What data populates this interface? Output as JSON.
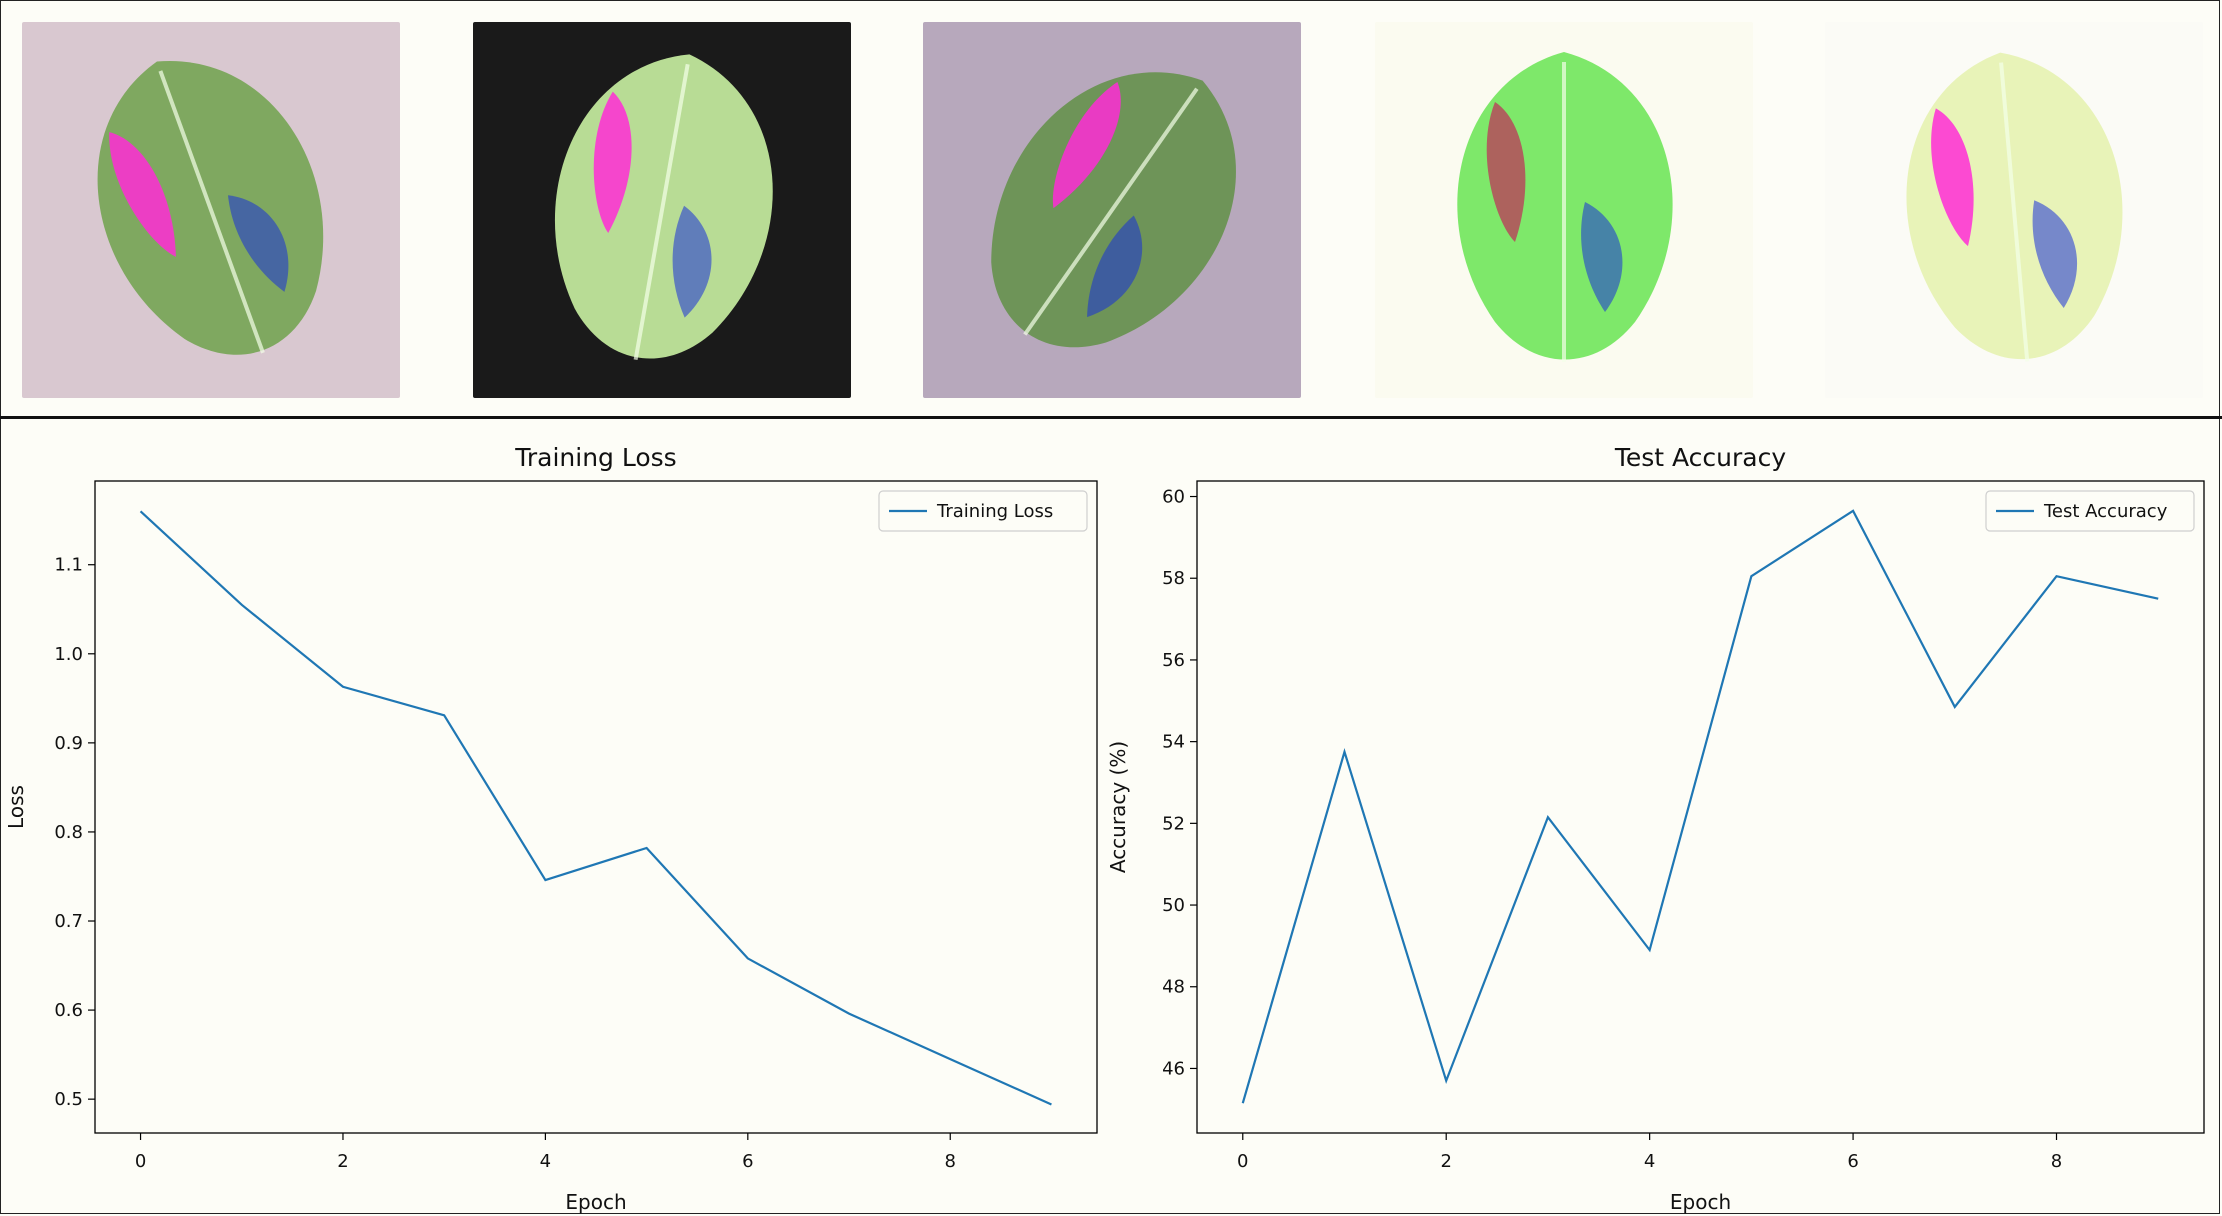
{
  "image_strip": {
    "items": [
      {
        "name": "leaf-sample-1",
        "bg": "#d9c8d0",
        "leaf": "#7fa860",
        "accent": "#ff2bd6"
      },
      {
        "name": "leaf-sample-2",
        "bg": "#1a1a1a",
        "leaf": "#b8dc95",
        "accent": "#ff2bd6"
      },
      {
        "name": "leaf-sample-3",
        "bg": "#b7a8bc",
        "leaf": "#6e9458",
        "accent": "#ff2bd6"
      },
      {
        "name": "leaf-sample-4",
        "bg": "#fbfbf0",
        "leaf": "#7ee86a",
        "accent": "#b54a5a"
      },
      {
        "name": "leaf-sample-5",
        "bg": "#fbfbf6",
        "leaf": "#e8f3b8",
        "accent": "#ff2bd6"
      }
    ]
  },
  "chart_data": [
    {
      "type": "line",
      "title": "Training Loss",
      "xlabel": "Epoch",
      "ylabel": "Loss",
      "x": [
        0,
        1,
        2,
        3,
        4,
        5,
        6,
        7,
        8,
        9
      ],
      "series": [
        {
          "name": "Training Loss",
          "values": [
            1.16,
            1.055,
            0.963,
            0.931,
            0.746,
            0.782,
            0.658,
            0.596,
            0.545,
            0.494
          ]
        }
      ],
      "xlim": [
        -0.45,
        9.45
      ],
      "ylim": [
        0.462,
        1.194
      ],
      "xticks": [
        0,
        2,
        4,
        6,
        8
      ],
      "yticks": [
        0.5,
        0.6,
        0.7,
        0.8,
        0.9,
        1.0,
        1.1
      ],
      "ytick_labels": [
        "0.5",
        "0.6",
        "0.7",
        "0.8",
        "0.9",
        "1.0",
        "1.1"
      ],
      "legend": "upper right",
      "color": "#1f77b4"
    },
    {
      "type": "line",
      "title": "Test Accuracy",
      "xlabel": "Epoch",
      "ylabel": "Accuracy (%)",
      "x": [
        0,
        1,
        2,
        3,
        4,
        5,
        6,
        7,
        8,
        9
      ],
      "series": [
        {
          "name": "Test Accuracy",
          "values": [
            45.15,
            53.75,
            45.7,
            52.15,
            48.9,
            58.05,
            59.65,
            54.85,
            58.05,
            57.5
          ]
        }
      ],
      "xlim": [
        -0.45,
        9.45
      ],
      "ylim": [
        44.42,
        60.38
      ],
      "xticks": [
        0,
        2,
        4,
        6,
        8
      ],
      "yticks": [
        46,
        48,
        50,
        52,
        54,
        56,
        58,
        60
      ],
      "ytick_labels": [
        "46",
        "48",
        "50",
        "52",
        "54",
        "56",
        "58",
        "60"
      ],
      "legend": "upper right",
      "color": "#1f77b4"
    }
  ]
}
